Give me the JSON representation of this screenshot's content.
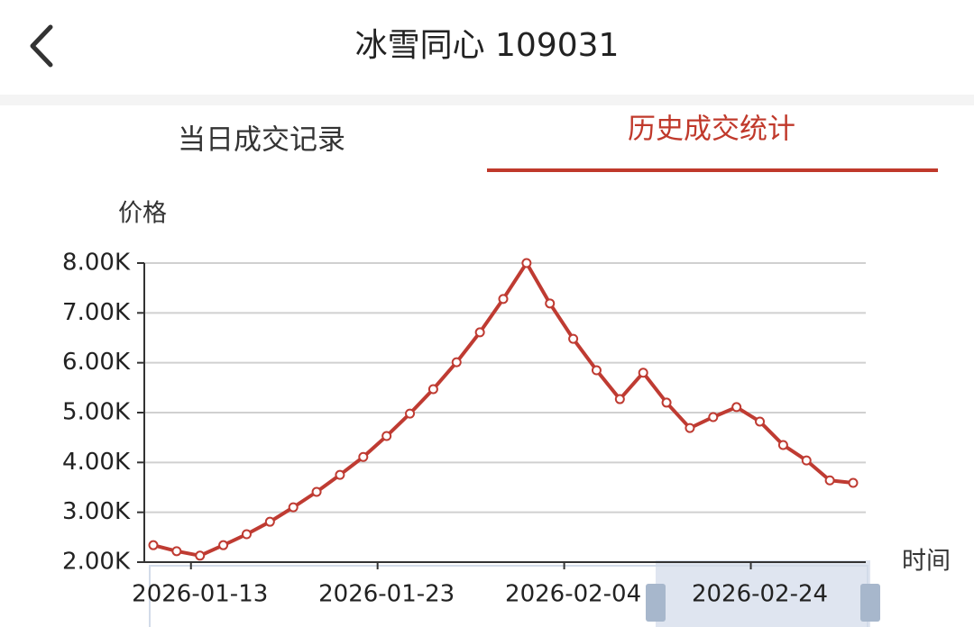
{
  "header": {
    "title": "冰雪同心 109031"
  },
  "tabs": [
    {
      "label": "当日成交记录",
      "active": false
    },
    {
      "label": "历史成交统计",
      "active": true
    }
  ],
  "chart_data": {
    "type": "line",
    "ylabel": "价格",
    "xlabel": "时间",
    "categories": [
      null,
      null,
      "2026-01-13",
      null,
      null,
      null,
      null,
      null,
      null,
      null,
      "2026-01-23",
      null,
      null,
      null,
      null,
      null,
      null,
      null,
      "2026-02-04",
      null,
      null,
      null,
      null,
      null,
      null,
      null,
      "2026-02-24",
      null,
      null,
      null,
      null
    ],
    "series": [
      {
        "color": "#bf3b32",
        "values": [
          2340,
          2220,
          2130,
          2340,
          2560,
          2810,
          3100,
          3410,
          3750,
          4110,
          4530,
          4980,
          5470,
          6010,
          6610,
          7280,
          8000,
          7190,
          6480,
          5850,
          5270,
          5800,
          5200,
          4690,
          4910,
          5110,
          4820,
          4350,
          4040,
          3640,
          3590
        ]
      }
    ],
    "ylim": [
      2000,
      8000
    ],
    "yticks": [
      {
        "value": 2000,
        "label": "2.00K"
      },
      {
        "value": 3000,
        "label": "3.00K"
      },
      {
        "value": 4000,
        "label": "4.00K"
      },
      {
        "value": 5000,
        "label": "5.00K"
      },
      {
        "value": 6000,
        "label": "6.00K"
      },
      {
        "value": 7000,
        "label": "7.00K"
      },
      {
        "value": 8000,
        "label": "8.00K"
      }
    ],
    "grid": true
  }
}
